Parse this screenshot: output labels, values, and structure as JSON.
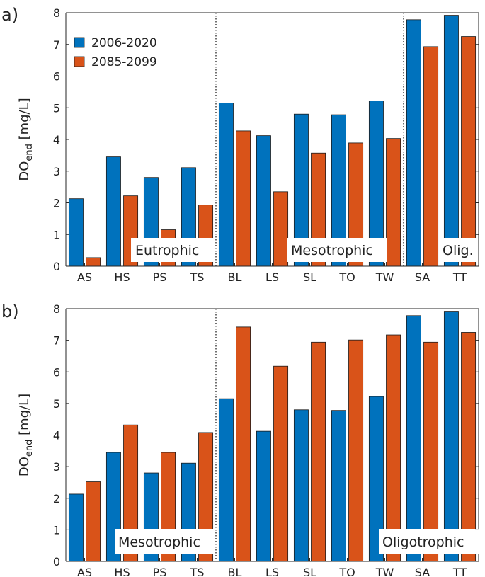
{
  "chart_data": [
    {
      "type": "bar",
      "panel_label": "a)",
      "categories": [
        "AS",
        "HS",
        "PS",
        "TS",
        "BL",
        "LS",
        "SL",
        "TO",
        "TW",
        "SA",
        "TT"
      ],
      "series": [
        {
          "name": "2006-2020",
          "color": "#0072bd",
          "values": [
            2.13,
            3.45,
            2.8,
            3.11,
            5.15,
            4.12,
            4.8,
            4.78,
            5.22,
            7.78,
            7.92
          ]
        },
        {
          "name": "2085-2099",
          "color": "#d95319",
          "values": [
            0.27,
            2.22,
            1.15,
            1.93,
            4.27,
            2.35,
            3.57,
            3.89,
            4.03,
            6.93,
            7.25
          ]
        }
      ],
      "ylim": [
        0,
        8
      ],
      "yticks": [
        "0",
        "1",
        "2",
        "3",
        "4",
        "5",
        "6",
        "7",
        "8"
      ],
      "ylabel_main": "DO",
      "ylabel_sub": "end",
      "ylabel_unit": "[mg/L]",
      "regions": [
        "Eutrophic",
        "Mesotrophic",
        "Olig."
      ],
      "dividers_after": [
        3,
        8
      ],
      "legend": "top-left"
    },
    {
      "type": "bar",
      "panel_label": "b)",
      "categories": [
        "AS",
        "HS",
        "PS",
        "TS",
        "BL",
        "LS",
        "SL",
        "TO",
        "TW",
        "SA",
        "TT"
      ],
      "series": [
        {
          "name": "2006-2020",
          "color": "#0072bd",
          "values": [
            2.13,
            3.45,
            2.8,
            3.11,
            5.15,
            4.12,
            4.8,
            4.78,
            5.22,
            7.78,
            7.92
          ]
        },
        {
          "name": "2085-2099",
          "color": "#d95319",
          "values": [
            2.52,
            4.32,
            3.45,
            4.08,
            7.42,
            6.18,
            6.94,
            7.01,
            7.17,
            6.94,
            7.25
          ]
        }
      ],
      "ylim": [
        0,
        8
      ],
      "yticks": [
        "0",
        "1",
        "2",
        "3",
        "4",
        "5",
        "6",
        "7",
        "8"
      ],
      "ylabel_main": "DO",
      "ylabel_sub": "end",
      "ylabel_unit": "[mg/L]",
      "regions": [
        "Mesotrophic",
        "Oligotrophic"
      ],
      "dividers_after": [
        3
      ],
      "legend": "none"
    }
  ]
}
